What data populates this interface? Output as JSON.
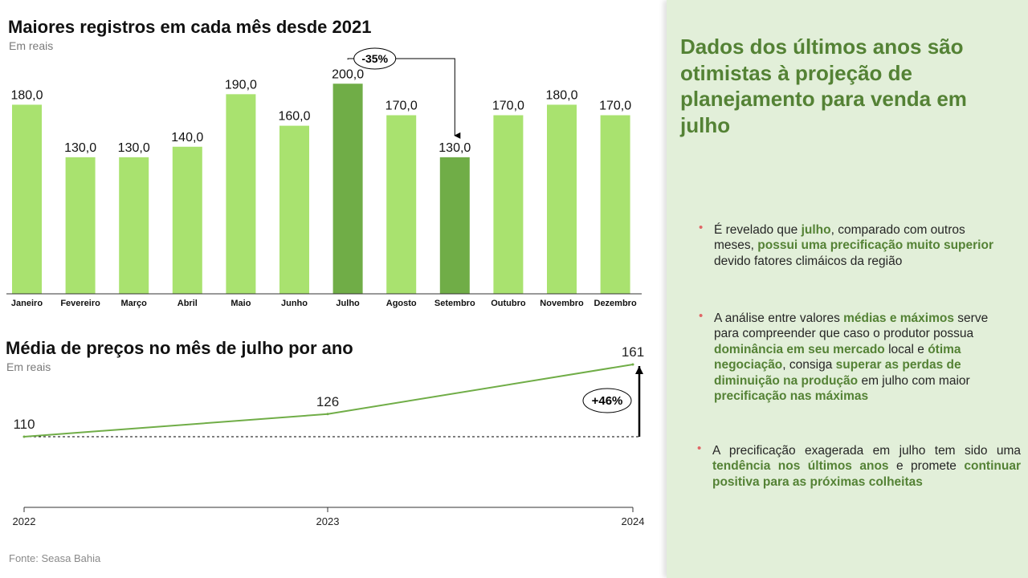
{
  "source": "Fonte: Seasa Bahia",
  "chart_data": [
    {
      "type": "bar",
      "title": "Maiores registros em cada mês desde 2021",
      "subtitle": "Em reais",
      "categories": [
        "Janeiro",
        "Fevereiro",
        "Março",
        "Abril",
        "Maio",
        "Junho",
        "Julho",
        "Agosto",
        "Setembro",
        "Outubro",
        "Novembro",
        "Dezembro"
      ],
      "values": [
        180.0,
        130.0,
        130.0,
        140.0,
        190.0,
        160.0,
        200.0,
        170.0,
        130.0,
        170.0,
        180.0,
        170.0
      ],
      "value_labels": [
        "180,0",
        "130,0",
        "130,0",
        "140,0",
        "190,0",
        "160,0",
        "200,0",
        "170,0",
        "130,0",
        "170,0",
        "180,0",
        "170,0"
      ],
      "highlighted": [
        "Julho",
        "Setembro"
      ],
      "annotation": "-35%",
      "colors": {
        "bar": "#a9e26f",
        "highlight": "#70ad47"
      },
      "ylim": [
        0,
        230
      ],
      "grid": false
    },
    {
      "type": "line",
      "title": "Média de preços no mês de julho por ano",
      "subtitle": "Em reais",
      "x": [
        "2022",
        "2023",
        "2024"
      ],
      "values": [
        110,
        126,
        161
      ],
      "value_labels": [
        "110",
        "126",
        "161"
      ],
      "annotation": "+46%",
      "colors": {
        "line": "#70ad47"
      },
      "ylim": [
        50,
        170
      ],
      "grid": false
    }
  ],
  "panel": {
    "title": "Dados dos últimos anos são otimistas à projeção de planejamento para venda em julho",
    "bullet_marker": "•",
    "bullets": [
      {
        "segments": [
          {
            "text": "É revelado que ",
            "hl": false
          },
          {
            "text": "julho",
            "hl": true
          },
          {
            "text": ", comparado com outros meses, ",
            "hl": false
          },
          {
            "text": "possui uma precificação muito superior",
            "hl": true
          },
          {
            "text": " devido fatores climáicos da região",
            "hl": false
          }
        ]
      },
      {
        "segments": [
          {
            "text": "A análise entre valores ",
            "hl": false
          },
          {
            "text": "médias e máximos",
            "hl": true
          },
          {
            "text": " serve para compreender que caso o produtor possua ",
            "hl": false
          },
          {
            "text": "dominância em seu mercado",
            "hl": true
          },
          {
            "text": " local e ",
            "hl": false
          },
          {
            "text": "ótima negociação",
            "hl": true
          },
          {
            "text": ", consiga ",
            "hl": false
          },
          {
            "text": "superar as perdas de diminuição na produção",
            "hl": true
          },
          {
            "text": " em julho com maior ",
            "hl": false
          },
          {
            "text": "precificação nas máximas",
            "hl": true
          }
        ]
      },
      {
        "segments": [
          {
            "text": "A precificação exagerada em julho tem sido uma ",
            "hl": false
          },
          {
            "text": "tendência nos últimos anos",
            "hl": true
          },
          {
            "text": " e promete ",
            "hl": false
          },
          {
            "text": "continuar positiva para as próximas colheitas",
            "hl": true
          }
        ]
      }
    ]
  }
}
